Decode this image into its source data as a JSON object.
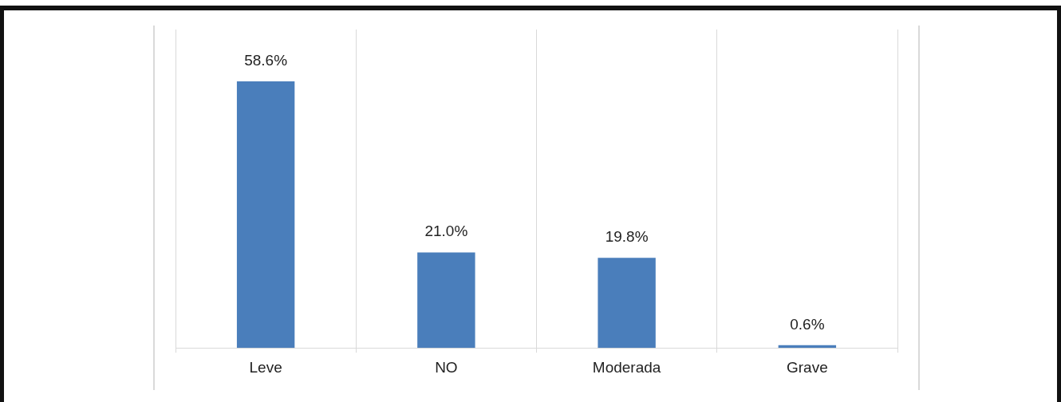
{
  "chart_data": {
    "type": "bar",
    "categories": [
      "Leve",
      "NO",
      "Moderada",
      "Grave"
    ],
    "values": [
      58.6,
      21.0,
      19.8,
      0.6
    ],
    "value_labels": [
      "58.6%",
      "21.0%",
      "19.8%",
      "0.6%"
    ],
    "color": "#4a7ebb",
    "grid": "x",
    "legend": false
  }
}
